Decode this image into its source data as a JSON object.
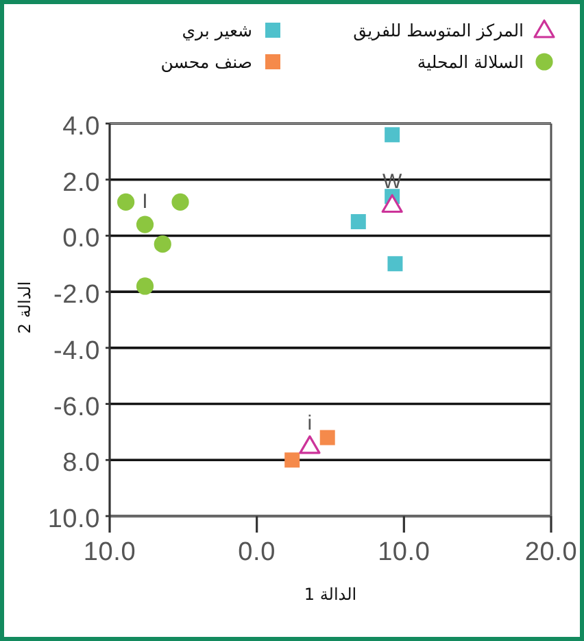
{
  "chart_data": {
    "type": "scatter",
    "xlabel": "الدالة 1",
    "ylabel": "الدالة 2",
    "xlim": [
      -10,
      20
    ],
    "xticks": [
      {
        "value": -10,
        "label": "10.0"
      },
      {
        "value": 0,
        "label": "0.0"
      },
      {
        "value": 10,
        "label": "10.0"
      },
      {
        "value": 20,
        "label": "20.0"
      }
    ],
    "ylim": [
      -10,
      4
    ],
    "yticks": [
      {
        "value": 4,
        "label": "4.0"
      },
      {
        "value": 2,
        "label": "2.0"
      },
      {
        "value": 0,
        "label": "0.0"
      },
      {
        "value": -2,
        "label": "-2.0"
      },
      {
        "value": -4,
        "label": "-4.0"
      },
      {
        "value": -6,
        "label": "-6.0"
      },
      {
        "value": -8,
        "label": "8.0"
      },
      {
        "value": -10,
        "label": "10.0"
      }
    ],
    "grid": "y",
    "legend": "top",
    "series": [
      {
        "name": "المركز المتوسط للفريق",
        "color": "#cc3399",
        "marker": "triangle",
        "x": [
          9.2,
          3.6
        ],
        "values": [
          1.1,
          -7.5
        ]
      },
      {
        "name": "شعير بري",
        "color": "#4fc1cc",
        "marker": "square",
        "x": [
          9.2,
          9.2,
          6.9,
          9.4
        ],
        "values": [
          3.6,
          1.4,
          0.5,
          -1.0
        ]
      },
      {
        "name": "السلالة المحلية",
        "color": "#8cc63f",
        "marker": "circle",
        "x": [
          -8.9,
          -5.2,
          -7.6,
          -6.4,
          -7.6
        ],
        "values": [
          1.2,
          1.2,
          0.4,
          -0.3,
          -1.8
        ]
      },
      {
        "name": "صنف محسن",
        "color": "#f58a4b",
        "marker": "square",
        "x": [
          4.8,
          2.4
        ],
        "values": [
          -7.2,
          -8.0
        ]
      }
    ],
    "annotations": [
      {
        "text": "W",
        "x": 9.2,
        "y": 1.1
      },
      {
        "text": "I",
        "x": -7.6,
        "y": 0.4
      },
      {
        "text": "i",
        "x": 3.6,
        "y": -7.5
      }
    ]
  }
}
